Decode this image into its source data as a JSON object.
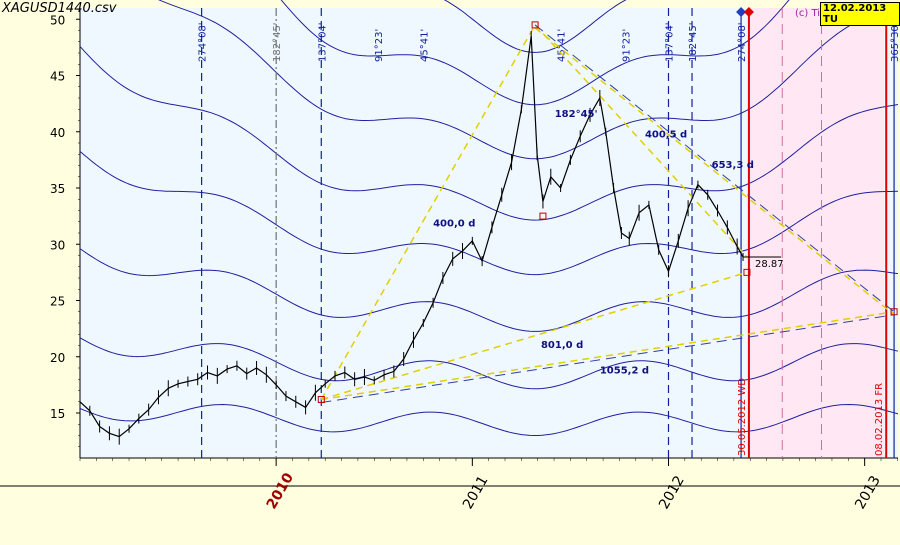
{
  "header": {
    "file_title": "XAGUSD1440.csv",
    "current_date": "12.02.2013 TU",
    "copyright": "(c) Ti"
  },
  "chart_data": {
    "type": "line",
    "y_ticks": [
      15,
      20,
      25,
      30,
      35,
      40,
      45,
      50
    ],
    "ylim": [
      11,
      51
    ],
    "x_year_labels": [
      {
        "label": "2010",
        "x": 2010.0,
        "color": "#a00000"
      },
      {
        "label": "2011",
        "x": 2011.0,
        "color": "#000000"
      },
      {
        "label": "2012",
        "x": 2012.0,
        "color": "#000000"
      },
      {
        "label": "2013",
        "x": 2013.0,
        "color": "#000000"
      }
    ],
    "vertical_markers": [
      {
        "x": 2009.62,
        "label": "274°08'",
        "style": "dashed",
        "color": "#1020a0"
      },
      {
        "x": 2010.0,
        "label": "182°45'",
        "style": "dashdot",
        "color": "#707070"
      },
      {
        "x": 2010.23,
        "label": "137°04'",
        "style": "dashed",
        "color": "#1020a0"
      },
      {
        "x": 2010.52,
        "label": "91°23'",
        "style": "none",
        "color": "#1020a0"
      },
      {
        "x": 2010.75,
        "label": "45°41'",
        "style": "none",
        "color": "#1020a0"
      },
      {
        "x": 2011.45,
        "label": "45°41'",
        "style": "none",
        "color": "#1020a0"
      },
      {
        "x": 2011.78,
        "label": "91°23'",
        "style": "none",
        "color": "#1020a0"
      },
      {
        "x": 2012.0,
        "label": "137°04'",
        "style": "dashed",
        "color": "#1020a0"
      },
      {
        "x": 2012.12,
        "label": "182°45'",
        "style": "dashed",
        "color": "#1020a0"
      },
      {
        "x": 2012.37,
        "label": "274°08'",
        "style": "solid",
        "color": "#1020a0"
      },
      {
        "x": 2013.15,
        "label": "365°30'",
        "style": "solid",
        "color": "#1020a0"
      }
    ],
    "date_markers": [
      {
        "x": 2012.41,
        "label": "30.05.2012 WD"
      },
      {
        "x": 2013.11,
        "label": "08.02.2013 FR"
      }
    ],
    "price_series": {
      "name": "XAGUSD",
      "points": [
        [
          2009.0,
          16.0
        ],
        [
          2009.05,
          15.2
        ],
        [
          2009.1,
          13.8
        ],
        [
          2009.15,
          13.2
        ],
        [
          2009.2,
          12.9
        ],
        [
          2009.25,
          13.6
        ],
        [
          2009.3,
          14.5
        ],
        [
          2009.35,
          15.3
        ],
        [
          2009.4,
          16.4
        ],
        [
          2009.45,
          17.2
        ],
        [
          2009.5,
          17.6
        ],
        [
          2009.55,
          17.8
        ],
        [
          2009.6,
          18.0
        ],
        [
          2009.65,
          18.6
        ],
        [
          2009.7,
          18.3
        ],
        [
          2009.75,
          18.9
        ],
        [
          2009.8,
          19.2
        ],
        [
          2009.85,
          18.5
        ],
        [
          2009.9,
          19.0
        ],
        [
          2009.95,
          18.4
        ],
        [
          2010.0,
          17.5
        ],
        [
          2010.05,
          16.5
        ],
        [
          2010.1,
          16.0
        ],
        [
          2010.15,
          15.5
        ],
        [
          2010.2,
          16.8
        ],
        [
          2010.25,
          17.6
        ],
        [
          2010.3,
          18.3
        ],
        [
          2010.35,
          18.6
        ],
        [
          2010.4,
          18.0
        ],
        [
          2010.45,
          18.2
        ],
        [
          2010.5,
          17.9
        ],
        [
          2010.55,
          18.4
        ],
        [
          2010.6,
          18.7
        ],
        [
          2010.65,
          19.8
        ],
        [
          2010.7,
          21.5
        ],
        [
          2010.75,
          23.0
        ],
        [
          2010.8,
          24.8
        ],
        [
          2010.85,
          27.0
        ],
        [
          2010.9,
          28.7
        ],
        [
          2010.95,
          29.4
        ],
        [
          2011.0,
          30.3
        ],
        [
          2011.05,
          28.5
        ],
        [
          2011.1,
          31.5
        ],
        [
          2011.15,
          34.4
        ],
        [
          2011.2,
          37.3
        ],
        [
          2011.25,
          42.0
        ],
        [
          2011.3,
          48.5
        ],
        [
          2011.33,
          38.0
        ],
        [
          2011.36,
          33.8
        ],
        [
          2011.4,
          36.0
        ],
        [
          2011.45,
          35.0
        ],
        [
          2011.5,
          37.5
        ],
        [
          2011.55,
          39.6
        ],
        [
          2011.6,
          41.5
        ],
        [
          2011.65,
          43.0
        ],
        [
          2011.68,
          40.0
        ],
        [
          2011.72,
          35.0
        ],
        [
          2011.76,
          31.0
        ],
        [
          2011.8,
          30.5
        ],
        [
          2011.85,
          32.8
        ],
        [
          2011.9,
          33.5
        ],
        [
          2011.95,
          29.5
        ],
        [
          2012.0,
          27.6
        ],
        [
          2012.05,
          30.3
        ],
        [
          2012.1,
          33.2
        ],
        [
          2012.15,
          35.3
        ],
        [
          2012.2,
          34.4
        ],
        [
          2012.25,
          33.0
        ],
        [
          2012.3,
          31.5
        ],
        [
          2012.35,
          29.8
        ],
        [
          2012.38,
          28.87
        ]
      ]
    },
    "last_price_label": "28.87",
    "pivot_points": [
      {
        "x": 2010.23,
        "y": 16.2
      },
      {
        "x": 2011.32,
        "y": 49.5
      },
      {
        "x": 2011.36,
        "y": 32.5
      },
      {
        "x": 2012.4,
        "y": 27.5
      },
      {
        "x": 2013.15,
        "y": 24.0
      }
    ],
    "trend_lines": [
      {
        "from": [
          2010.23,
          16.2
        ],
        "to": [
          2011.32,
          49.5
        ],
        "style": "yellow-dash"
      },
      {
        "from": [
          2011.32,
          49.5
        ],
        "to": [
          2012.4,
          28.87
        ],
        "style": "yellow-dash"
      },
      {
        "from": [
          2011.32,
          49.5
        ],
        "to": [
          2013.15,
          24.0
        ],
        "style": "blue-dash"
      },
      {
        "from": [
          2011.32,
          49.5
        ],
        "to": [
          2013.15,
          24.0
        ],
        "style": "yellow-dash",
        "offset": true
      },
      {
        "from": [
          2010.23,
          16.2
        ],
        "to": [
          2012.4,
          27.5
        ],
        "style": "yellow-dash"
      },
      {
        "from": [
          2010.23,
          16.2
        ],
        "to": [
          2013.15,
          24.0
        ],
        "style": "yellow-dash"
      },
      {
        "from": [
          2010.23,
          16.2
        ],
        "to": [
          2013.15,
          24.0
        ],
        "style": "blue-dash",
        "offset": true
      }
    ],
    "annotations": [
      {
        "text": "182°45'",
        "x": 2011.42,
        "y": 41.3
      },
      {
        "text": "400,5 d",
        "x": 2011.88,
        "y": 39.5
      },
      {
        "text": "653,3 d",
        "x": 2012.22,
        "y": 36.8
      },
      {
        "text": "400,0 d",
        "x": 2010.8,
        "y": 31.6
      },
      {
        "text": "801,0 d",
        "x": 2011.35,
        "y": 20.8
      },
      {
        "text": "1055,2 d",
        "x": 2011.65,
        "y": 18.5
      }
    ],
    "circle_curves": [
      {
        "y": 48.8,
        "depth": 3.5
      },
      {
        "y": 43.8,
        "depth": 2.8
      },
      {
        "y": 38.8,
        "depth": 2.4
      },
      {
        "y": 33.3,
        "depth": 2.3
      },
      {
        "y": 28.4,
        "depth": 2.2
      },
      {
        "y": 23.4,
        "depth": 2.3
      },
      {
        "y": 18.3,
        "depth": 2.3
      },
      {
        "y": 14.0,
        "depth": 2.0
      }
    ],
    "colors": {
      "background": "#ffffe0",
      "plot": "#ffffe0",
      "grid_area": "#f0f8ff",
      "circle": "#2020a0",
      "price": "#000000",
      "future_zone": "#ffe8f4",
      "red_marker": "#e00000"
    }
  }
}
